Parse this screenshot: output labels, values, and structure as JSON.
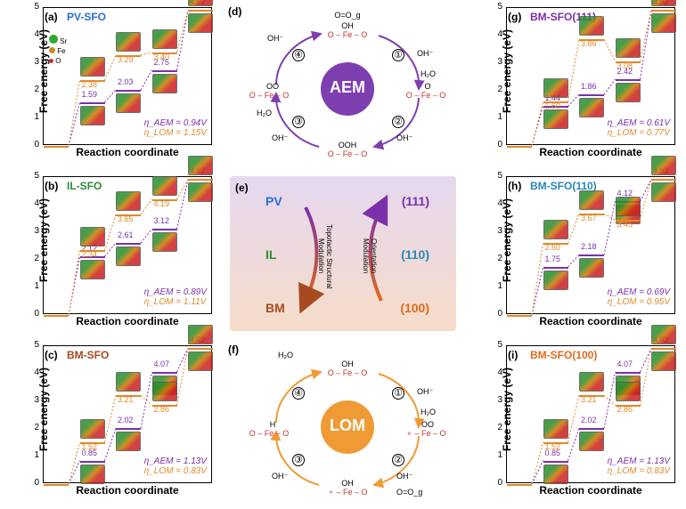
{
  "axes": {
    "ylabel": "Free energy (eV)",
    "xlabel": "Reaction coordinate",
    "ymin": 0,
    "ymax": 5,
    "ystep": 1
  },
  "colors": {
    "aem": "#7b2fab",
    "lom": "#e08a2a",
    "pv": "#2a6fd6",
    "il": "#2e8b3a",
    "bm": "#a84a20",
    "bm100": "#e06a1a",
    "bm110": "#2a88b8",
    "bm111": "#7b2fab",
    "mech_aem_fill": "#7d3fb0",
    "mech_lom_fill": "#f09a36",
    "panelE_bg_top": "#e6d8f0",
    "panelE_bg_bot": "#f6dcc8",
    "sr": "#2ea82e",
    "fe": "#c98a1f",
    "o": "#c83030"
  },
  "legend": {
    "sr": "Sr",
    "fe": "Fe",
    "o": "O"
  },
  "panels": {
    "a": {
      "tag": "(a)",
      "title": "PV-SFO",
      "title_color": "#2a6fd6",
      "aem": [
        0,
        1.59,
        2.03,
        2.75,
        4.92
      ],
      "lom": [
        0,
        2.38,
        3.29,
        3.4,
        4.92
      ],
      "aem_labels": {
        "1": "1.59",
        "2": "2.03",
        "3": "2.75",
        "4": "4.92"
      },
      "lom_labels": {
        "1": "2.38",
        "2": "3.29",
        "3": "3.40"
      },
      "eta_aem": "η_AEM = 0.94V",
      "eta_lom": "η_LOM = 1.15V"
    },
    "b": {
      "tag": "(b)",
      "title": "IL-SFO",
      "title_color": "#2e8b3a",
      "aem": [
        0,
        2.12,
        2.61,
        3.12,
        4.92
      ],
      "lom": [
        0,
        2.34,
        3.65,
        4.19,
        4.92
      ],
      "aem_labels": {
        "1": "2.12",
        "2": "2.61",
        "3": "3.12",
        "4": "4.92"
      },
      "lom_labels": {
        "1": "2.34",
        "2": "3.65",
        "3": "4.19"
      },
      "eta_aem": "η_AEM = 0.89V",
      "eta_lom": "η_LOM = 1.11V"
    },
    "c": {
      "tag": "(c)",
      "title": "BM-SFO",
      "title_color": "#a84a20",
      "aem": [
        0,
        0.85,
        2.02,
        4.07,
        4.92
      ],
      "lom": [
        0,
        1.52,
        3.21,
        2.86,
        4.92
      ],
      "aem_labels": {
        "1": "0.85",
        "2": "2.02",
        "3": "4.07",
        "4": "4.92"
      },
      "lom_labels": {
        "1": "1.52",
        "2": "3.21",
        "3": "2.86"
      },
      "eta_aem": "η_AEM = 1.13V",
      "eta_lom": "η_LOM = 0.83V"
    },
    "g": {
      "tag": "(g)",
      "title": "BM-SFO(111)",
      "title_color": "#7b2fab",
      "aem": [
        0,
        1.44,
        1.86,
        2.42,
        4.92
      ],
      "lom": [
        0,
        1.6,
        3.86,
        3.08,
        4.92
      ],
      "aem_labels": {
        "1": "1.44",
        "2": "1.86",
        "3": "2.42",
        "4": "4.92"
      },
      "lom_labels": {
        "1": "1.60",
        "2": "3.86",
        "3": "3.08"
      },
      "eta_aem": "η_AEM = 0.61V",
      "eta_lom": "η_LOM = 0.77V"
    },
    "h": {
      "tag": "(h)",
      "title": "BM-SFO(110)",
      "title_color": "#2a88b8",
      "aem": [
        0,
        1.75,
        2.18,
        4.12,
        4.92
      ],
      "lom": [
        0,
        2.6,
        3.67,
        3.45,
        4.92
      ],
      "aem_labels": {
        "1": "1.75",
        "2": "2.18",
        "3": "4.12",
        "4": "4.92"
      },
      "lom_labels": {
        "1": "2.60",
        "2": "3.67",
        "3": "3.45"
      },
      "eta_aem": "η_AEM = 0.69V",
      "eta_lom": "η_LOM = 0.95V"
    },
    "i": {
      "tag": "(i)",
      "title": "BM-SFO(100)",
      "title_color": "#e06a1a",
      "aem": [
        0,
        0.85,
        2.02,
        4.07,
        4.92
      ],
      "lom": [
        0,
        1.52,
        3.21,
        2.86,
        4.92
      ],
      "aem_labels": {
        "1": "0.85",
        "2": "2.02",
        "3": "4.07",
        "4": "4.92"
      },
      "lom_labels": {
        "1": "1.52",
        "2": "3.21",
        "3": "2.86"
      },
      "eta_aem": "η_AEM = 1.13V",
      "eta_lom": "η_LOM = 0.83V"
    }
  },
  "panel_d": {
    "tag": "(d)",
    "name": "AEM",
    "species": {
      "top": "O=O_g",
      "s1a": "OH",
      "s1b": "O – Fe – O",
      "s1r": "OH⁻",
      "s1p": "H₂O",
      "s2a": "O",
      "s2b": "O – Fe – O",
      "s2r": "OH⁻",
      "s3a": "OOH",
      "s3b": "O – Fe – O",
      "s3r": "OH⁻",
      "s3p": "H₂O",
      "s4a": "OO",
      "s4b": "O – Fe – O",
      "s4r": "OH⁻"
    }
  },
  "panel_e": {
    "tag": "(e)",
    "pv": "PV",
    "il": "IL",
    "bm": "BM",
    "o111": "(111)",
    "o110": "(110)",
    "o100": "(100)",
    "left_label": "Topotactic Structural Modulation",
    "right_label": "Orientation Modulation"
  },
  "panel_f": {
    "tag": "(f)",
    "name": "LOM",
    "species": {
      "top": "H₂O",
      "s1a": "OH",
      "s1b": "O – Fe – O",
      "s1r": "OH⁻",
      "s1p": "H₂O",
      "s2a": "OO",
      "s2b": "⚬ – Fe – O",
      "s2r": "OH⁻",
      "s3a": "OH",
      "s3b": "⚬ – Fe – O",
      "s3r": "OH⁻",
      "s4a": "H",
      "s4b": "O – Fe – O",
      "s4r": "O=O_g"
    }
  }
}
